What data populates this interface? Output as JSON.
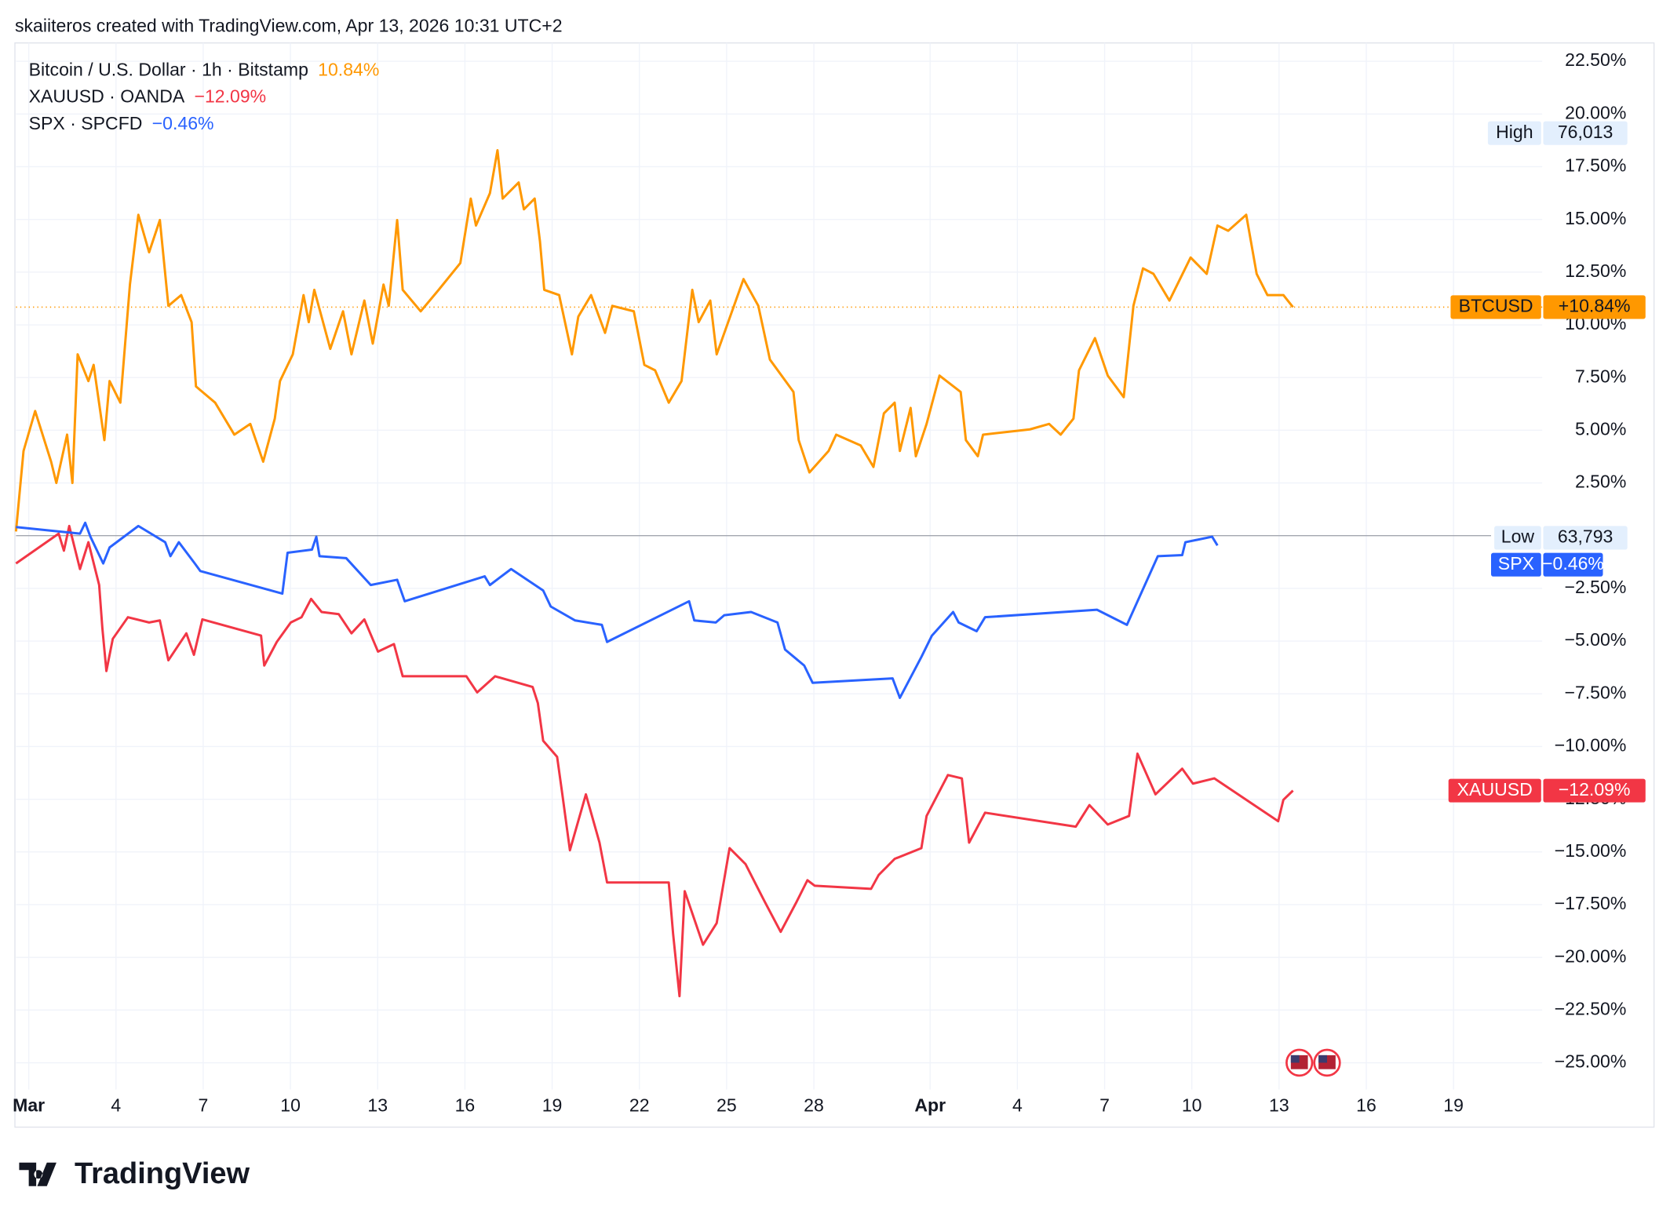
{
  "header": "skaiiteros created with TradingView.com, Apr 13, 2026 10:31 UTC+2",
  "logo": "TradingView",
  "chart_data": {
    "type": "line",
    "xlim": [
      -0.44,
      52.05
    ],
    "ylim": [
      -26.27,
      23.37
    ],
    "grid": true,
    "xticks": [
      {
        "value": 0,
        "label": "Mar"
      },
      {
        "value": 3,
        "label": "4"
      },
      {
        "value": 6,
        "label": "7"
      },
      {
        "value": 9,
        "label": "10"
      },
      {
        "value": 12,
        "label": "13"
      },
      {
        "value": 15,
        "label": "16"
      },
      {
        "value": 18,
        "label": "19"
      },
      {
        "value": 21,
        "label": "22"
      },
      {
        "value": 24,
        "label": "25"
      },
      {
        "value": 27,
        "label": "28"
      },
      {
        "value": 31,
        "label": "Apr"
      },
      {
        "value": 34,
        "label": "4"
      },
      {
        "value": 37,
        "label": "7"
      },
      {
        "value": 40,
        "label": "10"
      },
      {
        "value": 43,
        "label": "13"
      },
      {
        "value": 46,
        "label": "16"
      },
      {
        "value": 49,
        "label": "19"
      }
    ],
    "yticks": [
      {
        "value": 22.5,
        "label": "22.50%"
      },
      {
        "value": 20,
        "label": "20.00%"
      },
      {
        "value": 17.5,
        "label": "17.50%"
      },
      {
        "value": 15,
        "label": "15.00%"
      },
      {
        "value": 12.5,
        "label": "12.50%"
      },
      {
        "value": 10,
        "label": "10.00%"
      },
      {
        "value": 7.5,
        "label": "7.50%"
      },
      {
        "value": 5,
        "label": "5.00%"
      },
      {
        "value": 2.5,
        "label": "2.50%"
      },
      {
        "value": -2.5,
        "label": "−2.50%"
      },
      {
        "value": -5,
        "label": "−5.00%"
      },
      {
        "value": -7.5,
        "label": "−7.50%"
      },
      {
        "value": -10,
        "label": "−10.00%"
      },
      {
        "value": -12.5,
        "label": "−12.50%"
      },
      {
        "value": -15,
        "label": "−15.00%"
      },
      {
        "value": -17.5,
        "label": "−17.50%"
      },
      {
        "value": -20,
        "label": "−20.00%"
      },
      {
        "value": -22.5,
        "label": "−22.50%"
      },
      {
        "value": -25,
        "label": "−25.00%"
      }
    ],
    "high": {
      "label": "High",
      "value": "76,013"
    },
    "low": {
      "label": "Low",
      "value": "63,793"
    },
    "series": [
      {
        "name": "Bitcoin / U.S. Dollar · 1h · Bitstamp",
        "symbol": "BTCUSD",
        "color": "#ff9800",
        "x": [
          -0.44,
          -0.18,
          0.22,
          0.77,
          0.95,
          1.32,
          1.5,
          1.68,
          2.05,
          2.23,
          2.6,
          2.78,
          3.15,
          3.48,
          3.77,
          4.14,
          4.51,
          4.8,
          5.24,
          5.6,
          5.75,
          6.41,
          7.07,
          7.62,
          8.06,
          8.46,
          8.64,
          9.08,
          9.45,
          9.63,
          9.82,
          10.37,
          10.81,
          11.1,
          11.54,
          11.83,
          12.2,
          12.38,
          12.67,
          12.86,
          13.48,
          14.1,
          14.84,
          15.2,
          15.38,
          15.86,
          16.12,
          16.3,
          16.85,
          17.03,
          17.4,
          17.58,
          17.73,
          18.24,
          18.68,
          18.9,
          19.34,
          19.82,
          20.07,
          20.81,
          21.17,
          21.54,
          22.01,
          22.45,
          22.82,
          23.04,
          23.44,
          23.66,
          24.58,
          25.09,
          25.49,
          26.3,
          26.48,
          26.85,
          27.51,
          27.77,
          28.61,
          29.05,
          29.41,
          29.78,
          29.96,
          30.33,
          30.51,
          30.88,
          31.32,
          32.05,
          32.23,
          32.64,
          32.82,
          34.43,
          35.09,
          35.49,
          35.93,
          36.12,
          36.67,
          37.11,
          37.66,
          37.99,
          38.32,
          38.68,
          39.23,
          39.96,
          40.51,
          40.88,
          41.25,
          41.87,
          42.23,
          42.6,
          43.15,
          43.48
        ],
        "values": [
          0.2,
          4.02,
          5.91,
          3.51,
          2.5,
          4.79,
          2.5,
          8.6,
          7.33,
          8.1,
          4.53,
          7.33,
          6.31,
          11.91,
          15.22,
          13.44,
          14.97,
          10.9,
          11.41,
          10.13,
          7.08,
          6.31,
          4.79,
          5.3,
          3.51,
          5.55,
          7.33,
          8.6,
          11.41,
          10.13,
          11.66,
          8.86,
          10.64,
          8.6,
          11.15,
          9.11,
          11.91,
          10.9,
          14.97,
          11.66,
          10.64,
          11.66,
          12.93,
          15.99,
          14.71,
          16.24,
          18.28,
          15.99,
          16.75,
          15.48,
          15.99,
          13.95,
          11.66,
          11.41,
          8.6,
          10.39,
          11.41,
          9.62,
          10.9,
          10.64,
          8.1,
          7.84,
          6.31,
          7.33,
          11.66,
          10.13,
          11.15,
          8.6,
          12.17,
          10.9,
          8.35,
          6.82,
          4.53,
          3.0,
          4.02,
          4.79,
          4.28,
          3.26,
          5.8,
          6.31,
          4.02,
          6.06,
          3.77,
          5.3,
          7.59,
          6.82,
          4.53,
          3.77,
          4.79,
          5.04,
          5.3,
          4.79,
          5.55,
          7.84,
          9.37,
          7.59,
          6.57,
          10.9,
          12.68,
          12.42,
          11.15,
          13.19,
          12.42,
          14.71,
          14.46,
          15.22,
          12.42,
          11.41,
          11.41,
          10.84
        ],
        "last": {
          "value": 10.84,
          "legend_label": "10.84%",
          "tag_label": "+10.84%"
        }
      },
      {
        "name": "XAUUSD · OANDA",
        "symbol": "XAUUSD",
        "color": "#f23645",
        "x": [
          -0.44,
          1.03,
          1.21,
          1.39,
          1.76,
          2.05,
          2.42,
          2.53,
          2.67,
          2.89,
          3.41,
          4.14,
          4.51,
          4.8,
          5.42,
          5.68,
          5.97,
          7.99,
          8.1,
          8.53,
          9.01,
          9.38,
          9.71,
          10.07,
          10.66,
          11.1,
          11.54,
          12.01,
          12.56,
          12.86,
          15.05,
          15.42,
          16.04,
          17.33,
          17.51,
          17.69,
          18.17,
          18.35,
          18.61,
          19.16,
          19.63,
          19.89,
          22.01,
          22.16,
          22.38,
          22.56,
          23.19,
          23.66,
          24.1,
          24.65,
          25.31,
          25.86,
          26.41,
          26.78,
          27.03,
          28.97,
          29.23,
          29.78,
          30.7,
          30.88,
          31.61,
          32.09,
          32.34,
          32.89,
          36.01,
          36.48,
          37.11,
          37.84,
          38.13,
          38.75,
          39.67,
          40.04,
          40.77,
          42.97,
          43.15,
          43.48
        ],
        "values": [
          -1.32,
          0.1,
          -0.71,
          0.46,
          -1.58,
          -0.31,
          -2.34,
          -4.38,
          -6.42,
          -4.89,
          -3.87,
          -4.12,
          -4.02,
          -5.91,
          -4.63,
          -5.65,
          -3.97,
          -4.74,
          -6.16,
          -5.04,
          -4.12,
          -3.87,
          -3.0,
          -3.62,
          -3.72,
          -4.63,
          -3.97,
          -5.5,
          -5.14,
          -6.67,
          -6.67,
          -7.43,
          -6.67,
          -7.18,
          -7.94,
          -9.73,
          -10.49,
          -12.27,
          -14.92,
          -12.27,
          -14.56,
          -16.45,
          -16.45,
          -18.89,
          -21.84,
          -16.86,
          -19.4,
          -18.38,
          -14.82,
          -15.58,
          -17.36,
          -18.79,
          -17.36,
          -16.34,
          -16.6,
          -16.75,
          -16.09,
          -15.33,
          -14.82,
          -13.29,
          -11.35,
          -11.51,
          -14.56,
          -13.14,
          -13.8,
          -12.78,
          -13.7,
          -13.29,
          -10.34,
          -12.27,
          -11.05,
          -11.76,
          -11.51,
          -13.54,
          -12.53,
          -12.09
        ],
        "last": {
          "value": -12.09,
          "legend_label": "−12.09%",
          "tag_label": "−12.09%"
        }
      },
      {
        "name": "SPX · SPCFD",
        "symbol": "SPX",
        "color": "#2962ff",
        "x": [
          -0.44,
          1.76,
          1.94,
          2.12,
          2.56,
          2.78,
          3.77,
          4.69,
          4.87,
          5.16,
          5.71,
          5.9,
          8.72,
          8.9,
          9.74,
          9.89,
          10.0,
          10.92,
          11.76,
          12.67,
          12.93,
          15.68,
          15.86,
          16.59,
          17.69,
          17.95,
          18.79,
          19.71,
          19.89,
          22.71,
          22.89,
          23.63,
          23.92,
          24.84,
          25.75,
          26.01,
          26.67,
          26.96,
          29.71,
          29.96,
          30.7,
          31.06,
          31.79,
          31.98,
          32.6,
          32.89,
          36.74,
          37.77,
          38.83,
          39.67,
          39.78,
          40.7,
          40.88
        ],
        "values": [
          0.41,
          0.1,
          0.61,
          -0.05,
          -1.32,
          -0.56,
          0.46,
          -0.31,
          -0.97,
          -0.31,
          -1.32,
          -1.68,
          -2.75,
          -0.81,
          -0.66,
          -0.05,
          -0.97,
          -1.07,
          -2.34,
          -2.09,
          -3.11,
          -1.93,
          -2.34,
          -1.58,
          -2.6,
          -3.36,
          -4.02,
          -4.23,
          -5.04,
          -3.11,
          -4.02,
          -4.12,
          -3.77,
          -3.62,
          -4.12,
          -5.4,
          -6.16,
          -6.98,
          -6.77,
          -7.69,
          -5.75,
          -4.74,
          -3.62,
          -4.12,
          -4.53,
          -3.87,
          -3.51,
          -4.23,
          -0.97,
          -0.92,
          -0.31,
          -0.05,
          -0.46
        ],
        "last": {
          "value": -0.46,
          "legend_label": "−0.46%",
          "tag_label": "−0.46%"
        }
      }
    ]
  }
}
